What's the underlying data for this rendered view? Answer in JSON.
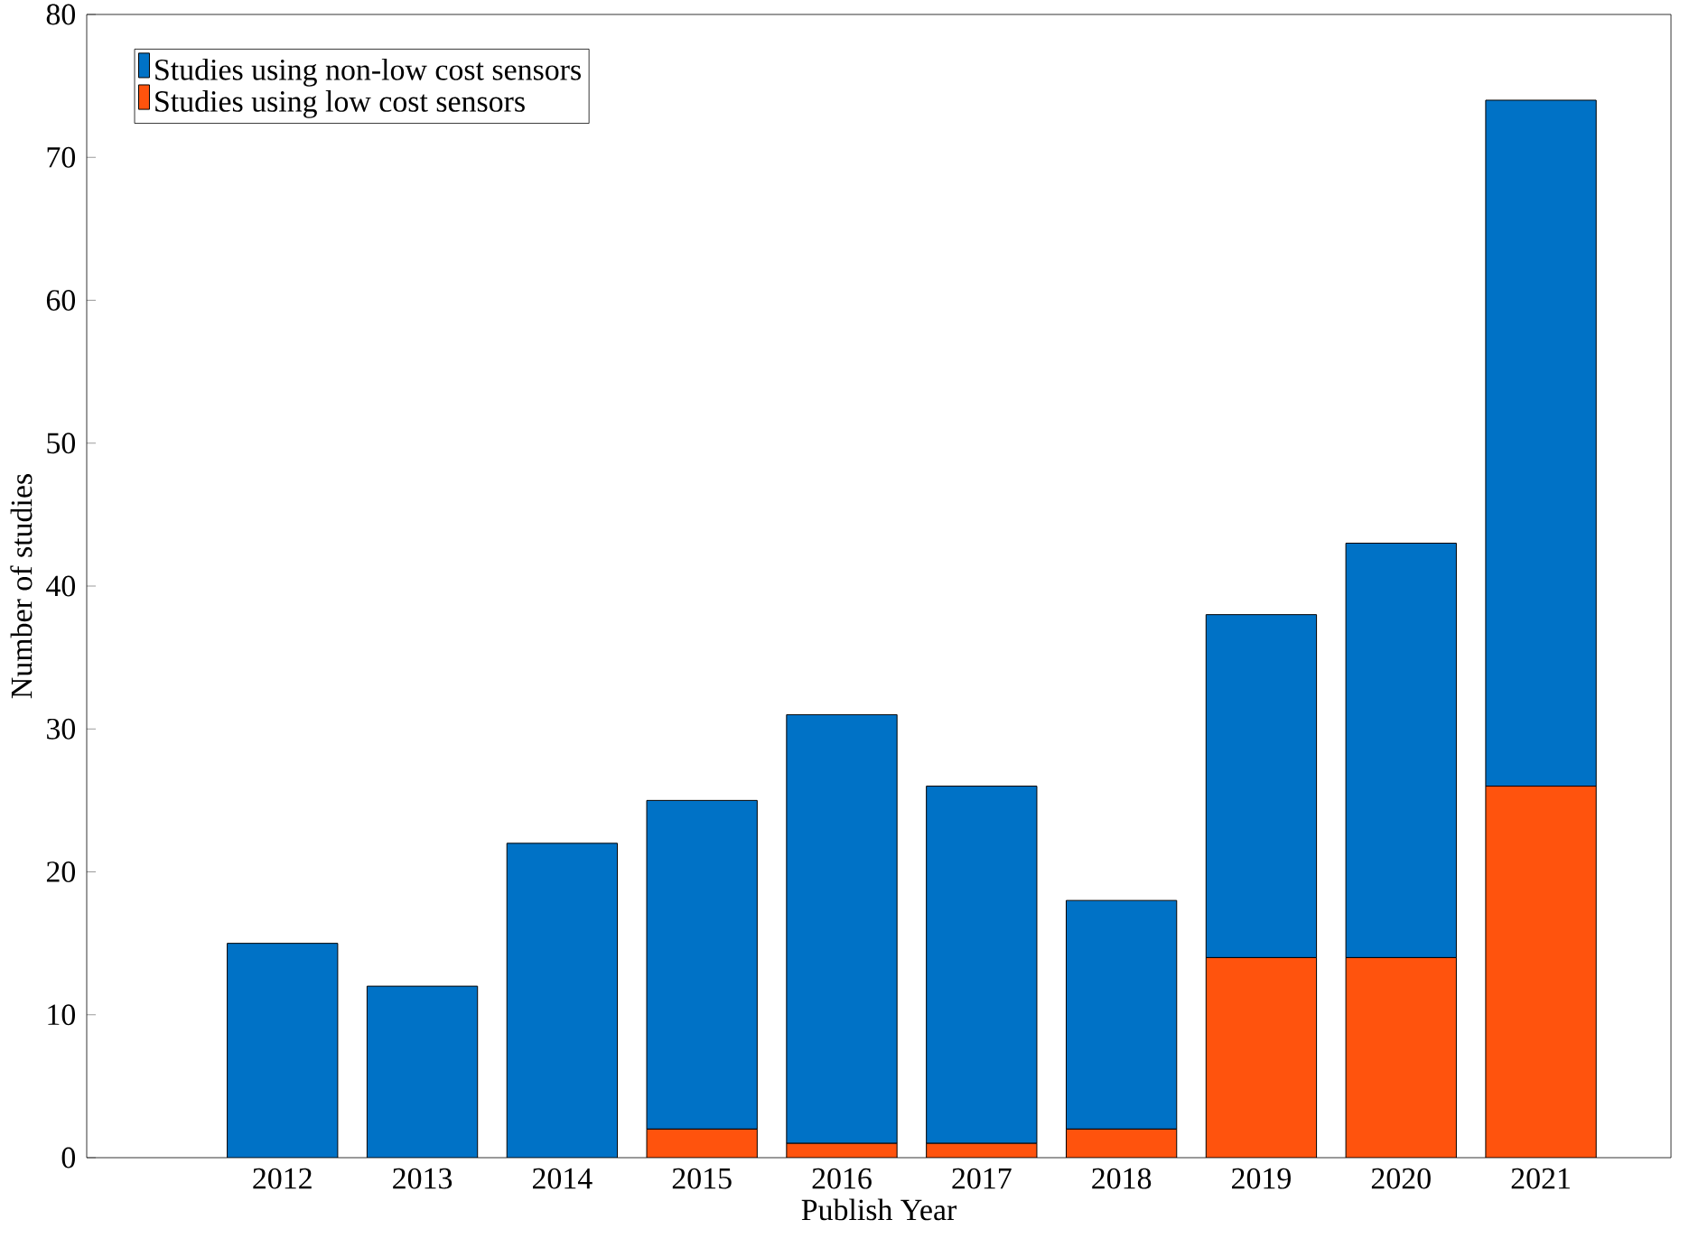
{
  "chart_data": {
    "type": "bar",
    "stacked": true,
    "xlabel": "Publish Year",
    "ylabel": "Number of studies",
    "categories": [
      "2012",
      "2013",
      "2014",
      "2015",
      "2016",
      "2017",
      "2018",
      "2019",
      "2020",
      "2021"
    ],
    "series": [
      {
        "name": "Studies using low cost sensors",
        "color": "#ff530d",
        "values": [
          0,
          0,
          0,
          2,
          1,
          1,
          2,
          14,
          14,
          26
        ]
      },
      {
        "name": "Studies using non-low cost sensors",
        "color": "#0072c6",
        "values": [
          15,
          12,
          22,
          23,
          30,
          25,
          16,
          24,
          29,
          48
        ]
      }
    ],
    "ylim": [
      0,
      80
    ],
    "yticks": [
      0,
      10,
      20,
      30,
      40,
      50,
      60,
      70,
      80
    ],
    "legend": "top left"
  }
}
